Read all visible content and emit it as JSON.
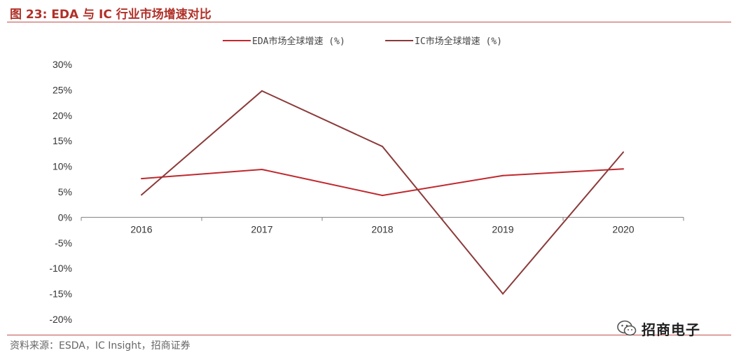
{
  "figure": {
    "title": "图 23:  EDA 与 IC 行业市场增速对比",
    "source": "资料来源：ESDA，IC Insight，招商证券",
    "watermark": "招商电子",
    "watermark_icon": "wechat-icon"
  },
  "chart_data": {
    "type": "line",
    "title": "",
    "xlabel": "",
    "ylabel": "",
    "categories": [
      "2016",
      "2017",
      "2018",
      "2019",
      "2020"
    ],
    "ylim": [
      -20,
      30
    ],
    "yticks": [
      30,
      25,
      20,
      15,
      10,
      5,
      0,
      -5,
      -10,
      -15,
      -20
    ],
    "ytick_labels": [
      "30%",
      "25%",
      "20%",
      "15%",
      "10%",
      "5%",
      "0%",
      "-5%",
      "-10%",
      "-15%",
      "-20%"
    ],
    "grid": false,
    "legend_position": "top-center",
    "series": [
      {
        "name": "EDA市场全球增速 (%)",
        "color": "#c0282d",
        "values": [
          7.6,
          9.4,
          4.3,
          8.2,
          9.5
        ]
      },
      {
        "name": "IC市场全球增速 (%)",
        "color": "#8b3a3a",
        "values": [
          4.4,
          24.8,
          13.9,
          -15.0,
          12.8
        ]
      }
    ]
  }
}
